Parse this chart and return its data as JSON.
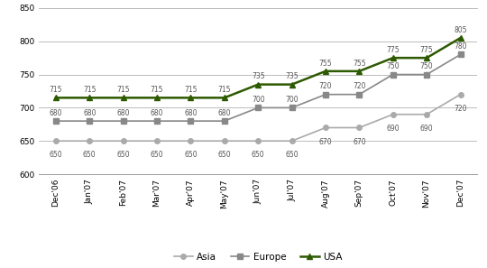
{
  "x_labels": [
    "Dec'06",
    "Jan'07",
    "Feb'07",
    "Mar'07",
    "Apr'07",
    "May'07",
    "Jun'07",
    "Jul'07",
    "Aug'07",
    "Sep'07",
    "Oct'07",
    "Nov'07",
    "Dec'07"
  ],
  "asia": [
    650,
    650,
    650,
    650,
    650,
    650,
    650,
    650,
    670,
    670,
    690,
    690,
    720
  ],
  "europe": [
    680,
    680,
    680,
    680,
    680,
    680,
    700,
    700,
    720,
    720,
    750,
    750,
    780
  ],
  "usa": [
    715,
    715,
    715,
    715,
    715,
    715,
    735,
    735,
    755,
    755,
    775,
    775,
    805
  ],
  "asia_color": "#aaaaaa",
  "europe_color": "#888888",
  "usa_color": "#2d5a00",
  "ylim": [
    600,
    850
  ],
  "yticks": [
    600,
    650,
    700,
    750,
    800,
    850
  ],
  "legend_labels": [
    "Asia",
    "Europe",
    "USA"
  ],
  "background_color": "#ffffff",
  "grid_color": "#bbbbbb",
  "label_fontsize": 5.5,
  "tick_fontsize": 6.5,
  "legend_fontsize": 7.5
}
